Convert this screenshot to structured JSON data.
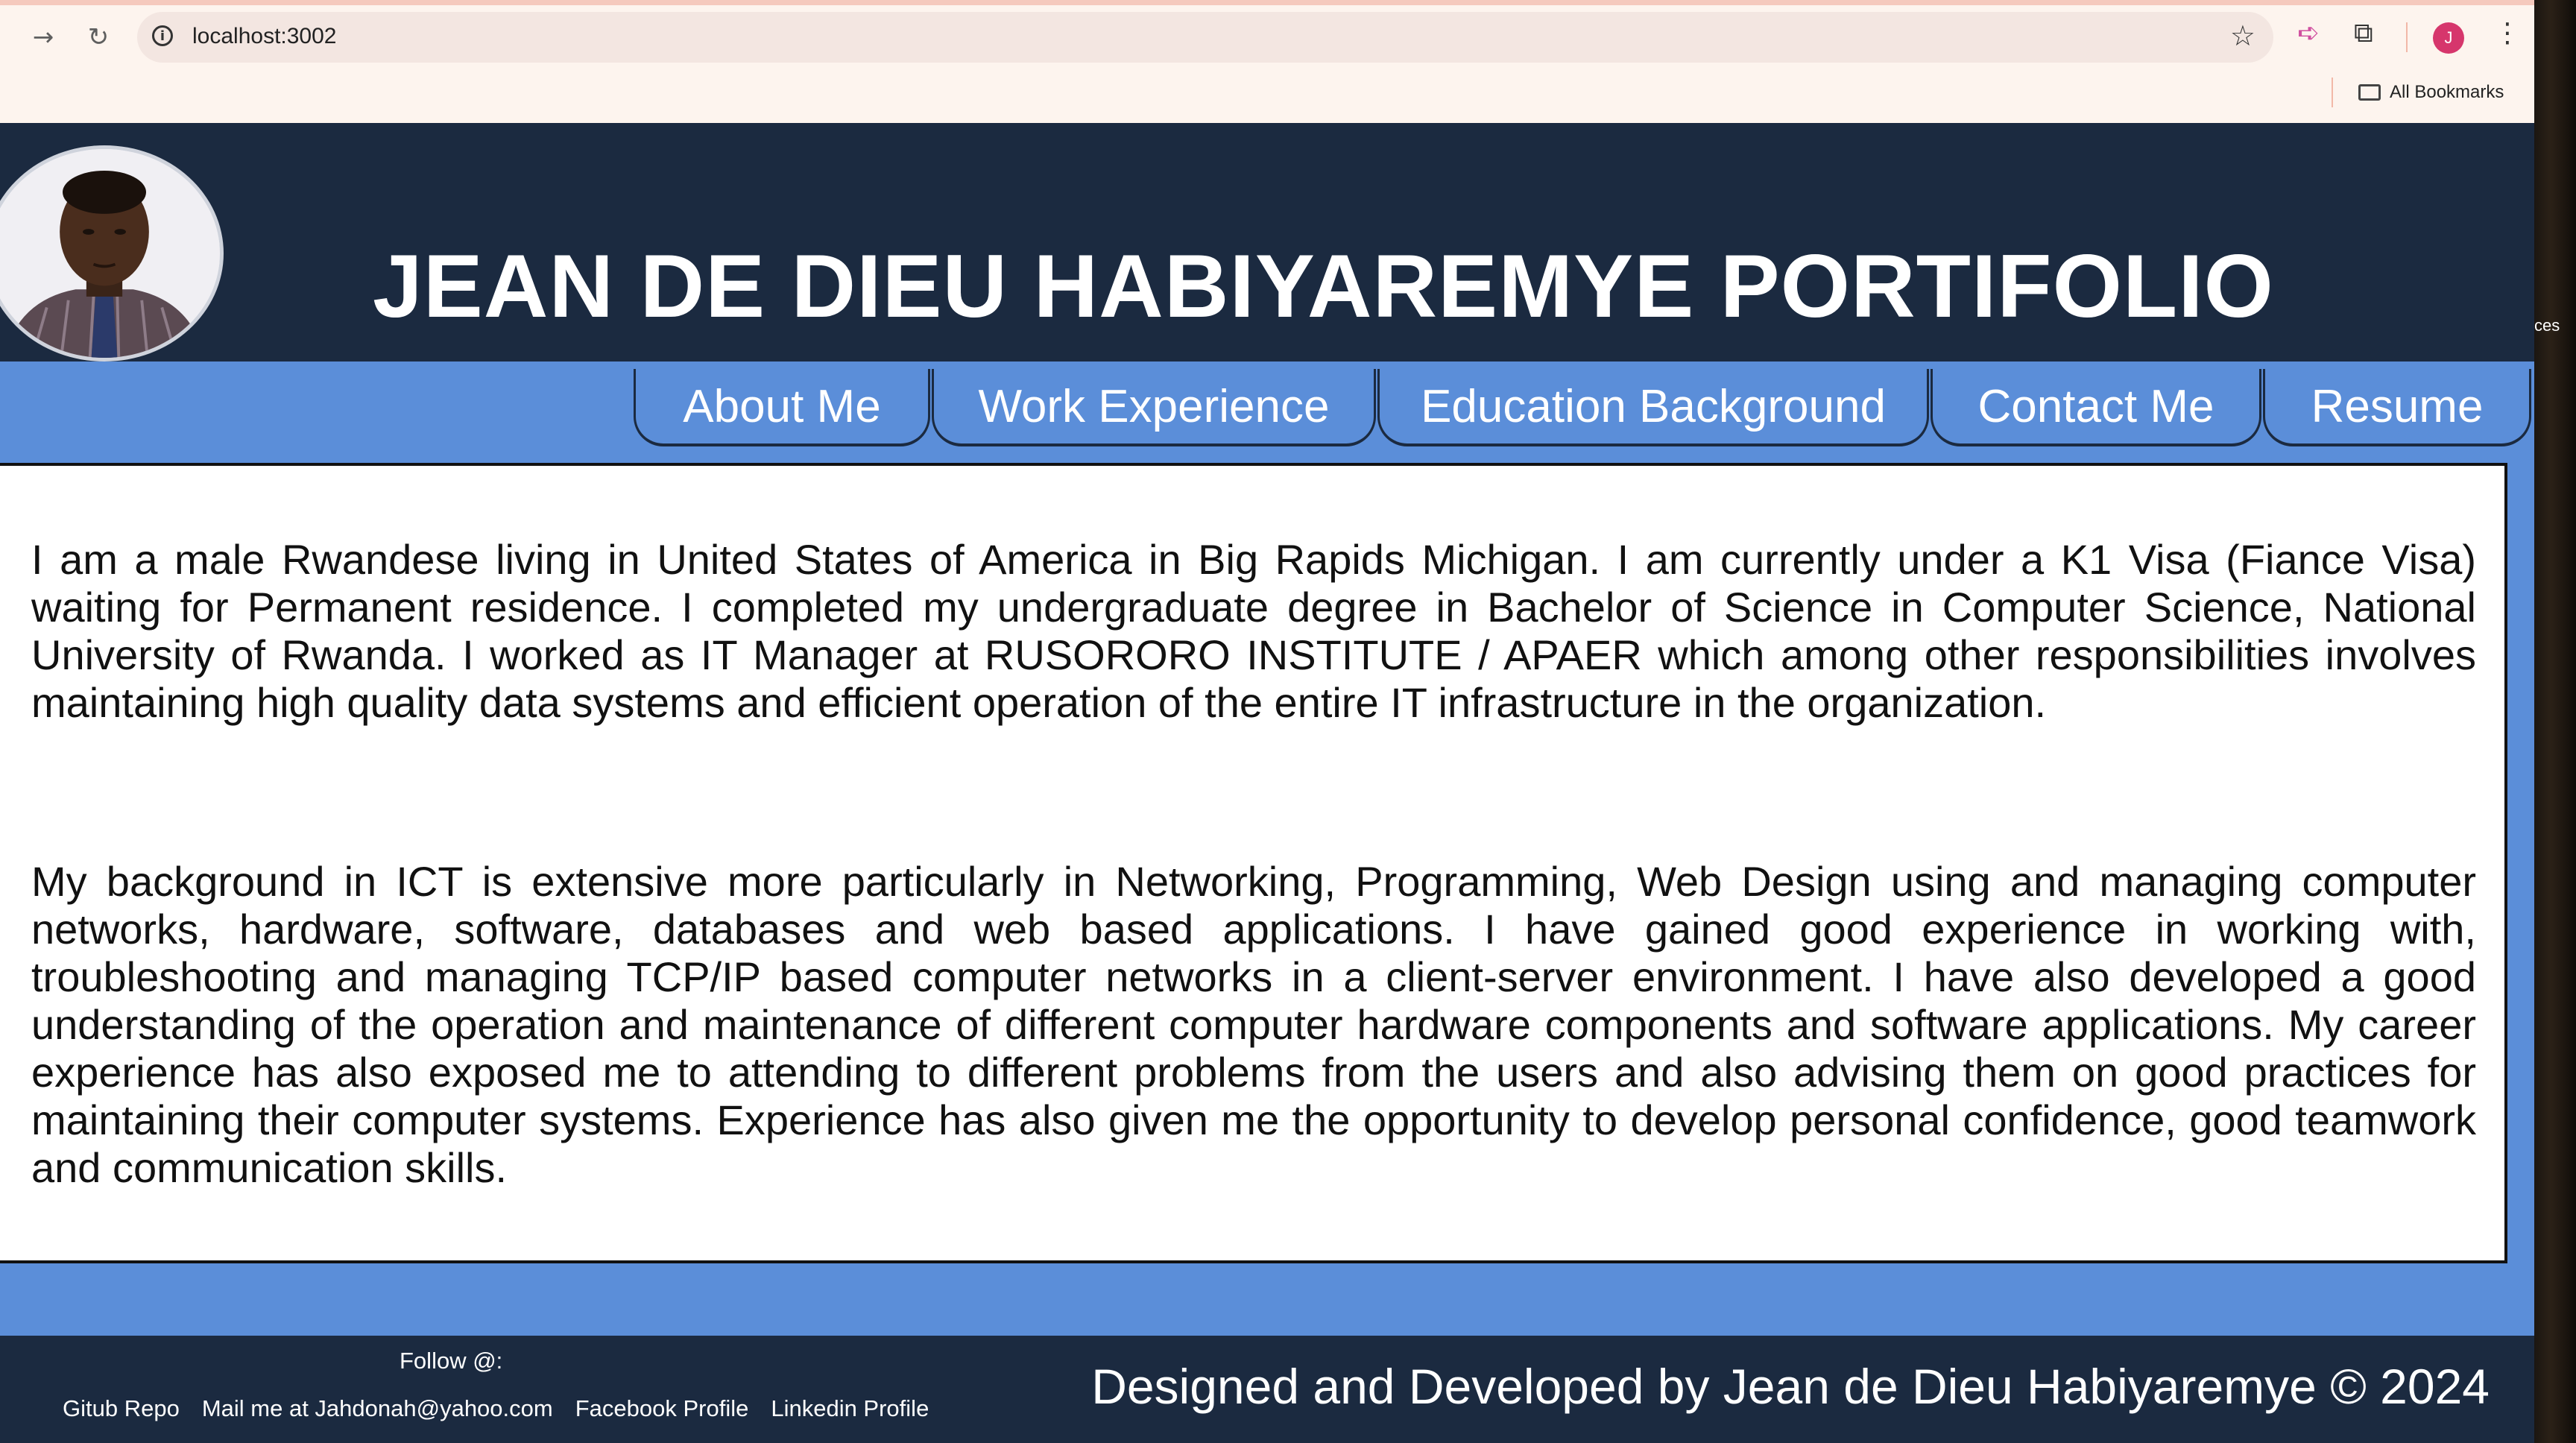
{
  "browser": {
    "url": "localhost:3002",
    "bookmarks_label": "All Bookmarks",
    "profile_initial": "J",
    "back_icon": "arrow-right-icon",
    "reload_icon": "reload-icon"
  },
  "side_peek_text": "ces",
  "site": {
    "title": "JEAN DE DIEU HABIYAREMYE PORTIFOLIO",
    "nav": [
      "About Me",
      "Work Experience",
      "Education Background",
      "Contact Me",
      "Resume"
    ],
    "paragraphs": [
      "I am a male Rwandese living in United States of America in Big Rapids Michigan. I am currently under a K1 Visa (Fiance Visa) waiting for Permanent residence. I completed my undergraduate degree in Bachelor of Science in Computer Science, National University of Rwanda. I worked as IT Manager at RUSORORO INSTITUTE / APAER which among other responsibilities involves maintaining high quality data systems and efficient operation of the entire IT infrastructure in the organization.",
      "My background in ICT is extensive more particularly in Networking, Programming, Web Design using and managing computer networks, hardware, software, databases and web based applications. I have gained good experience in working with, troubleshooting and managing TCP/IP based computer networks in a client-server environment. I have also developed a good understanding of the operation and maintenance of different computer hardware components and software applications. My career experience has also exposed me to attending to different problems from the users and also advising them on good practices for maintaining their computer systems. Experience has also given me the opportunity to develop personal confidence, good teamwork and communication skills."
    ],
    "footer": {
      "follow_label": "Follow @:",
      "links": [
        "Gitub Repo",
        "Mail me at Jahdonah@yahoo.com",
        "Facebook Profile",
        "Linkedin Profile"
      ],
      "credit": "Designed and Developed by Jean de Dieu Habiyaremye © 2024"
    }
  },
  "colors": {
    "header_bg": "#1b2a40",
    "nav_bg": "#5b8ed9",
    "content_bg": "#ffffff"
  }
}
